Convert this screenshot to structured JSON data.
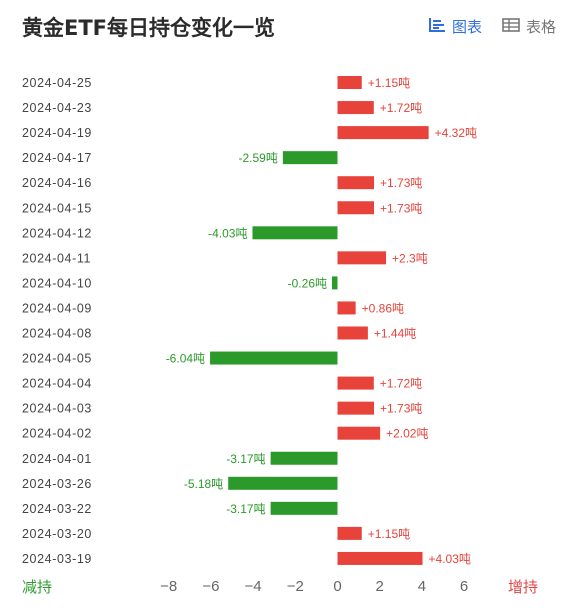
{
  "header": {
    "title": "黄金ETF每日持仓变化一览",
    "view_chart_label": "图表",
    "view_table_label": "表格",
    "active_color": "#2f6fdd"
  },
  "axis_ends": {
    "left": "减持",
    "right": "增持"
  },
  "chart_data": {
    "type": "bar",
    "orientation": "horizontal",
    "value_unit": "吨",
    "categories": [
      "2024-04-25",
      "2024-04-23",
      "2024-04-19",
      "2024-04-17",
      "2024-04-16",
      "2024-04-15",
      "2024-04-12",
      "2024-04-11",
      "2024-04-10",
      "2024-04-09",
      "2024-04-08",
      "2024-04-05",
      "2024-04-04",
      "2024-04-03",
      "2024-04-02",
      "2024-04-01",
      "2024-03-26",
      "2024-03-22",
      "2024-03-20",
      "2024-03-19"
    ],
    "values": [
      1.15,
      1.72,
      4.32,
      -2.59,
      1.73,
      1.73,
      -4.03,
      2.3,
      -0.26,
      0.86,
      1.44,
      -6.04,
      1.72,
      1.73,
      2.02,
      -3.17,
      -5.18,
      -3.17,
      1.15,
      4.03
    ],
    "data_labels": [
      "+1.15吨",
      "+1.72吨",
      "+4.32吨",
      "-2.59吨",
      "+1.73吨",
      "+1.73吨",
      "-4.03吨",
      "+2.3吨",
      "-0.26吨",
      "+0.86吨",
      "+1.44吨",
      "-6.04吨",
      "+1.72吨",
      "+1.73吨",
      "+2.02吨",
      "-3.17吨",
      "-5.18吨",
      "-3.17吨",
      "+1.15吨",
      "+4.03吨"
    ],
    "xlim": [
      -8,
      6
    ],
    "xticks": [
      -8,
      -6,
      -4,
      -2,
      0,
      2,
      4,
      6
    ],
    "xtick_labels": [
      "−8",
      "−6",
      "−4",
      "−2",
      "0",
      "2",
      "4",
      "6"
    ],
    "colors": {
      "positive": "#e8433b",
      "negative": "#2b9a2b"
    },
    "grid": false,
    "legend": "none"
  }
}
